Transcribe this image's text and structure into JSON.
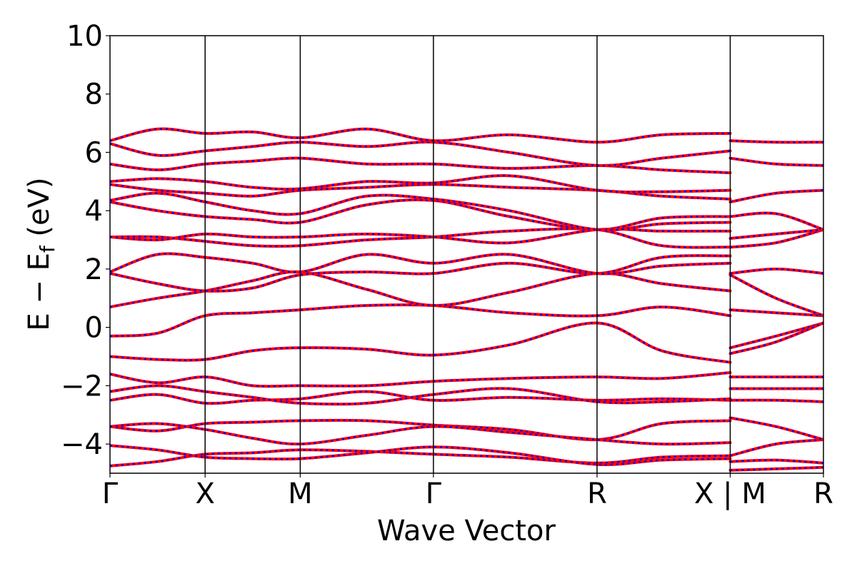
{
  "chart_data": {
    "type": "line",
    "title": "",
    "xlabel": "Wave Vector",
    "ylabel": {
      "main": "E − E",
      "sub": "f",
      "unit": " (eV)"
    },
    "ylim": [
      -5,
      10
    ],
    "yticks": [
      -4,
      -2,
      0,
      2,
      4,
      6,
      8,
      10
    ],
    "ytick_labels": [
      "−4",
      "−2",
      "0",
      "2",
      "4",
      "6",
      "8",
      "10"
    ],
    "xlim": [
      0,
      7.5
    ],
    "high_symmetry_points": [
      {
        "label": "Γ",
        "x": 0.0
      },
      {
        "label": "X",
        "x": 1.0
      },
      {
        "label": "M",
        "x": 2.0
      },
      {
        "label": "Γ",
        "x": 3.4
      },
      {
        "label": "R",
        "x": 5.12
      },
      {
        "label": "X | M",
        "x": 6.52
      },
      {
        "label": "R",
        "x": 7.5
      }
    ],
    "series_style": [
      {
        "color": "#ff0000",
        "style": "solid",
        "width": 4
      },
      {
        "color": "#0000ff",
        "style": "dotted",
        "width": 2.5
      }
    ],
    "series": [
      {
        "values": [
          [
            0,
            -4.75
          ],
          [
            0.5,
            -4.6
          ],
          [
            1,
            -4.35
          ],
          [
            1.5,
            -4.3
          ],
          [
            2,
            -4.2
          ],
          [
            2.7,
            -4.25
          ],
          [
            3.4,
            -4.35
          ],
          [
            4.2,
            -4.45
          ],
          [
            5.12,
            -4.65
          ],
          [
            5.8,
            -4.45
          ],
          [
            6.52,
            -4.4
          ]
        ]
      },
      {
        "values": [
          [
            0,
            -4.05
          ],
          [
            0.5,
            -4.2
          ],
          [
            1,
            -4.45
          ],
          [
            1.5,
            -4.5
          ],
          [
            2,
            -4.5
          ],
          [
            2.7,
            -4.3
          ],
          [
            3.4,
            -4.1
          ],
          [
            4.2,
            -4.3
          ],
          [
            5.12,
            -4.7
          ],
          [
            5.8,
            -4.55
          ],
          [
            6.52,
            -4.5
          ]
        ]
      },
      {
        "values": [
          [
            0,
            -3.4
          ],
          [
            0.5,
            -3.55
          ],
          [
            1,
            -3.3
          ],
          [
            1.5,
            -3.25
          ],
          [
            2,
            -3.2
          ],
          [
            2.7,
            -3.2
          ],
          [
            3.4,
            -3.35
          ],
          [
            4.2,
            -3.5
          ],
          [
            5.12,
            -3.85
          ],
          [
            5.8,
            -3.3
          ],
          [
            6.52,
            -3.2
          ]
        ]
      },
      {
        "values": [
          [
            0,
            -3.4
          ],
          [
            0.5,
            -3.3
          ],
          [
            1,
            -3.5
          ],
          [
            1.5,
            -3.8
          ],
          [
            2,
            -4.0
          ],
          [
            2.7,
            -3.7
          ],
          [
            3.4,
            -3.4
          ],
          [
            4.2,
            -3.6
          ],
          [
            5.12,
            -3.85
          ],
          [
            5.8,
            -4.0
          ],
          [
            6.52,
            -3.95
          ]
        ]
      },
      {
        "values": [
          [
            0,
            -2.5
          ],
          [
            0.5,
            -2.3
          ],
          [
            1,
            -2.6
          ],
          [
            1.5,
            -2.5
          ],
          [
            2,
            -2.45
          ],
          [
            2.7,
            -2.2
          ],
          [
            3.4,
            -2.5
          ],
          [
            4.2,
            -2.4
          ],
          [
            5.12,
            -2.5
          ],
          [
            5.8,
            -2.45
          ],
          [
            6.52,
            -2.5
          ]
        ]
      },
      {
        "values": [
          [
            0,
            -2.2
          ],
          [
            0.5,
            -2.0
          ],
          [
            1,
            -2.2
          ],
          [
            1.5,
            -2.4
          ],
          [
            2,
            -2.6
          ],
          [
            2.7,
            -2.6
          ],
          [
            3.4,
            -2.3
          ],
          [
            4.2,
            -2.1
          ],
          [
            5.12,
            -2.55
          ],
          [
            5.8,
            -2.55
          ],
          [
            6.52,
            -2.45
          ]
        ]
      },
      {
        "values": [
          [
            0,
            -1.6
          ],
          [
            0.5,
            -1.9
          ],
          [
            1,
            -1.7
          ],
          [
            1.5,
            -2.0
          ],
          [
            2,
            -2.0
          ],
          [
            2.7,
            -2.0
          ],
          [
            3.4,
            -1.85
          ],
          [
            4.2,
            -1.75
          ],
          [
            5.12,
            -1.7
          ],
          [
            5.8,
            -1.75
          ],
          [
            6.52,
            -1.55
          ]
        ]
      },
      {
        "values": [
          [
            0,
            -1.0
          ],
          [
            0.5,
            -1.1
          ],
          [
            1,
            -1.1
          ],
          [
            1.5,
            -0.8
          ],
          [
            2,
            -0.7
          ],
          [
            2.7,
            -0.75
          ],
          [
            3.4,
            -0.95
          ],
          [
            4.2,
            -0.6
          ],
          [
            5.12,
            0.15
          ],
          [
            5.8,
            -0.8
          ],
          [
            6.52,
            -1.2
          ]
        ]
      },
      {
        "values": [
          [
            0,
            -0.3
          ],
          [
            0.5,
            -0.2
          ],
          [
            1,
            0.4
          ],
          [
            1.5,
            0.5
          ],
          [
            2,
            0.6
          ],
          [
            2.7,
            0.75
          ],
          [
            3.4,
            0.75
          ],
          [
            4.2,
            0.5
          ],
          [
            5.12,
            0.4
          ],
          [
            5.8,
            0.7
          ],
          [
            6.52,
            0.4
          ]
        ]
      },
      {
        "values": [
          [
            0,
            0.7
          ],
          [
            0.5,
            1.0
          ],
          [
            1,
            1.25
          ],
          [
            1.5,
            1.6
          ],
          [
            2,
            1.9
          ],
          [
            2.7,
            1.3
          ],
          [
            3.4,
            0.75
          ],
          [
            4.2,
            1.2
          ],
          [
            5.12,
            1.85
          ],
          [
            5.8,
            1.5
          ],
          [
            6.52,
            1.25
          ]
        ]
      },
      {
        "values": [
          [
            0,
            1.85
          ],
          [
            0.5,
            1.5
          ],
          [
            1,
            1.25
          ],
          [
            1.5,
            1.35
          ],
          [
            2,
            1.8
          ],
          [
            2.7,
            1.9
          ],
          [
            3.4,
            1.85
          ],
          [
            4.2,
            2.2
          ],
          [
            5.12,
            1.85
          ],
          [
            5.8,
            2.4
          ],
          [
            6.52,
            2.45
          ]
        ]
      },
      {
        "values": [
          [
            0,
            1.9
          ],
          [
            0.5,
            2.5
          ],
          [
            1,
            2.4
          ],
          [
            1.5,
            2.2
          ],
          [
            2,
            1.9
          ],
          [
            2.7,
            2.5
          ],
          [
            3.4,
            2.2
          ],
          [
            4.2,
            2.5
          ],
          [
            5.12,
            1.85
          ],
          [
            5.8,
            2.1
          ],
          [
            6.52,
            2.2
          ]
        ]
      },
      {
        "values": [
          [
            0,
            3.1
          ],
          [
            0.5,
            3.1
          ],
          [
            1,
            2.95
          ],
          [
            1.5,
            2.8
          ],
          [
            2,
            2.8
          ],
          [
            2.7,
            3.0
          ],
          [
            3.4,
            3.1
          ],
          [
            4.2,
            3.3
          ],
          [
            5.12,
            3.35
          ],
          [
            5.8,
            2.8
          ],
          [
            6.52,
            2.75
          ]
        ]
      },
      {
        "values": [
          [
            0,
            3.1
          ],
          [
            0.5,
            3.0
          ],
          [
            1,
            3.2
          ],
          [
            1.5,
            3.1
          ],
          [
            2,
            3.1
          ],
          [
            2.7,
            3.2
          ],
          [
            3.4,
            3.1
          ],
          [
            4.2,
            2.9
          ],
          [
            5.12,
            3.35
          ],
          [
            5.8,
            3.3
          ],
          [
            6.52,
            3.3
          ]
        ]
      },
      {
        "values": [
          [
            0,
            4.3
          ],
          [
            0.5,
            4.0
          ],
          [
            1,
            3.8
          ],
          [
            1.5,
            3.7
          ],
          [
            2,
            3.6
          ],
          [
            2.7,
            4.2
          ],
          [
            3.4,
            4.35
          ],
          [
            4.2,
            3.8
          ],
          [
            5.12,
            3.35
          ],
          [
            5.8,
            3.75
          ],
          [
            6.52,
            3.8
          ]
        ]
      },
      {
        "values": [
          [
            0,
            4.35
          ],
          [
            0.5,
            4.6
          ],
          [
            1,
            4.3
          ],
          [
            1.5,
            4.0
          ],
          [
            2,
            3.9
          ],
          [
            2.7,
            4.5
          ],
          [
            3.4,
            4.4
          ],
          [
            4.2,
            4.0
          ],
          [
            5.12,
            3.35
          ],
          [
            5.8,
            3.55
          ],
          [
            6.52,
            3.6
          ]
        ]
      },
      {
        "values": [
          [
            0,
            4.9
          ],
          [
            0.5,
            4.7
          ],
          [
            1,
            4.6
          ],
          [
            1.5,
            4.5
          ],
          [
            2,
            4.7
          ],
          [
            2.7,
            4.8
          ],
          [
            3.4,
            4.9
          ],
          [
            4.2,
            4.8
          ],
          [
            5.12,
            4.7
          ],
          [
            5.8,
            4.5
          ],
          [
            6.52,
            4.4
          ]
        ]
      },
      {
        "values": [
          [
            0,
            5.0
          ],
          [
            0.5,
            5.1
          ],
          [
            1,
            5.0
          ],
          [
            1.5,
            4.8
          ],
          [
            2,
            4.75
          ],
          [
            2.7,
            5.0
          ],
          [
            3.4,
            4.95
          ],
          [
            4.2,
            5.2
          ],
          [
            5.12,
            4.7
          ],
          [
            5.8,
            4.65
          ],
          [
            6.52,
            4.7
          ]
        ]
      },
      {
        "values": [
          [
            0,
            5.6
          ],
          [
            0.5,
            5.4
          ],
          [
            1,
            5.6
          ],
          [
            1.5,
            5.7
          ],
          [
            2,
            5.8
          ],
          [
            2.7,
            5.6
          ],
          [
            3.4,
            5.6
          ],
          [
            4.2,
            5.45
          ],
          [
            5.12,
            5.55
          ],
          [
            5.8,
            5.4
          ],
          [
            6.52,
            5.3
          ]
        ]
      },
      {
        "values": [
          [
            0,
            6.3
          ],
          [
            0.5,
            5.9
          ],
          [
            1,
            6.05
          ],
          [
            1.5,
            6.2
          ],
          [
            2,
            6.35
          ],
          [
            2.7,
            6.2
          ],
          [
            3.4,
            6.35
          ],
          [
            4.2,
            6.0
          ],
          [
            5.12,
            5.55
          ],
          [
            5.8,
            5.8
          ],
          [
            6.52,
            6.05
          ]
        ]
      },
      {
        "values": [
          [
            0,
            6.4
          ],
          [
            0.5,
            6.8
          ],
          [
            1,
            6.65
          ],
          [
            1.5,
            6.7
          ],
          [
            2,
            6.5
          ],
          [
            2.7,
            6.8
          ],
          [
            3.4,
            6.4
          ],
          [
            4.2,
            6.6
          ],
          [
            5.12,
            6.35
          ],
          [
            5.8,
            6.6
          ],
          [
            6.52,
            6.65
          ]
        ]
      },
      {
        "values": [
          [
            6.52,
            -4.9
          ],
          [
            7.0,
            -4.85
          ],
          [
            7.5,
            -4.8
          ]
        ]
      },
      {
        "values": [
          [
            6.52,
            -4.6
          ],
          [
            7.0,
            -4.55
          ],
          [
            7.5,
            -4.65
          ]
        ]
      },
      {
        "values": [
          [
            6.52,
            -4.4
          ],
          [
            7.0,
            -4.0
          ],
          [
            7.5,
            -3.85
          ]
        ]
      },
      {
        "values": [
          [
            6.52,
            -3.1
          ],
          [
            7.0,
            -3.4
          ],
          [
            7.5,
            -3.85
          ]
        ]
      },
      {
        "values": [
          [
            6.52,
            -2.5
          ],
          [
            7.0,
            -2.5
          ],
          [
            7.5,
            -2.55
          ]
        ]
      },
      {
        "values": [
          [
            6.52,
            -2.1
          ],
          [
            7.0,
            -2.1
          ],
          [
            7.5,
            -2.1
          ]
        ]
      },
      {
        "values": [
          [
            6.52,
            -1.7
          ],
          [
            7.0,
            -1.7
          ],
          [
            7.5,
            -1.7
          ]
        ]
      },
      {
        "values": [
          [
            6.52,
            -0.7
          ],
          [
            7.0,
            -0.3
          ],
          [
            7.5,
            0.15
          ]
        ]
      },
      {
        "values": [
          [
            6.52,
            -0.9
          ],
          [
            7.0,
            -0.5
          ],
          [
            7.5,
            0.15
          ]
        ]
      },
      {
        "values": [
          [
            6.52,
            0.6
          ],
          [
            7.0,
            0.5
          ],
          [
            7.5,
            0.4
          ]
        ]
      },
      {
        "values": [
          [
            6.52,
            1.85
          ],
          [
            7.0,
            2.0
          ],
          [
            7.5,
            1.85
          ]
        ]
      },
      {
        "values": [
          [
            6.52,
            1.8
          ],
          [
            7.0,
            1.0
          ],
          [
            7.5,
            0.4
          ]
        ]
      },
      {
        "values": [
          [
            6.52,
            2.75
          ],
          [
            7.0,
            2.9
          ],
          [
            7.5,
            3.35
          ]
        ]
      },
      {
        "values": [
          [
            6.52,
            3.05
          ],
          [
            7.0,
            3.2
          ],
          [
            7.5,
            3.35
          ]
        ]
      },
      {
        "values": [
          [
            6.52,
            3.8
          ],
          [
            7.0,
            3.9
          ],
          [
            7.5,
            3.35
          ]
        ]
      },
      {
        "values": [
          [
            6.52,
            4.3
          ],
          [
            7.0,
            4.6
          ],
          [
            7.5,
            4.7
          ]
        ]
      },
      {
        "values": [
          [
            6.52,
            5.8
          ],
          [
            7.0,
            5.6
          ],
          [
            7.5,
            5.55
          ]
        ]
      },
      {
        "values": [
          [
            6.52,
            6.4
          ],
          [
            7.0,
            6.35
          ],
          [
            7.5,
            6.35
          ]
        ]
      }
    ],
    "grid": false,
    "legend": "none"
  }
}
